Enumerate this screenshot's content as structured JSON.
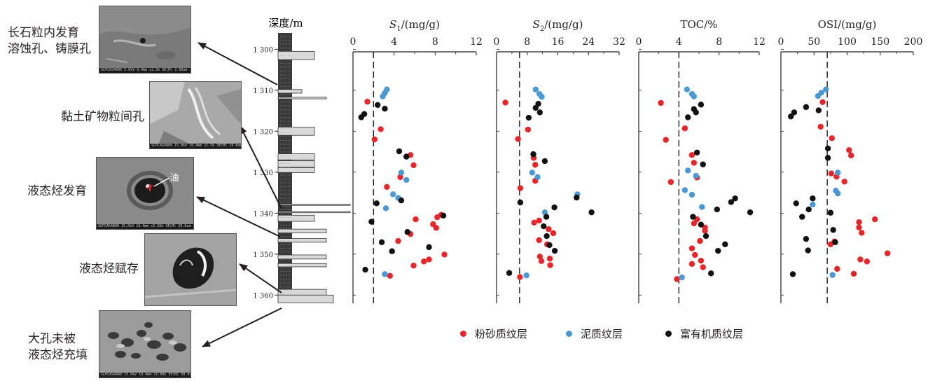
{
  "column": {
    "title": "深度/m",
    "tick_labels": [
      "1 300",
      "1 310",
      "1 320",
      "1 330",
      "1 340",
      "1 350",
      "1 360"
    ]
  },
  "sem_labels": [
    {
      "line1": "长石粒内发育",
      "line2": "溶蚀孔、铸膜孔"
    },
    {
      "line1": "黏土矿物粒间孔",
      "line2": ""
    },
    {
      "line1": "液态烃发育",
      "line2": ""
    },
    {
      "line1": "液态烃赋存",
      "line2": ""
    },
    {
      "line1": "大孔未被",
      "line2": "液态烃充填"
    }
  ],
  "sem_inset": {
    "oil_label": "油"
  },
  "sem_captions": [
    "SCPCAS4800 5.0kV 9.4mm x2.5k SE(M)  2.00um",
    "SCPCAS4800 15.0kV 10.4mm x1.5k SE(M)  10.0um",
    "SCPCAS4800 15.0kV 10.4mm x2.50k SE(M)  20.0um",
    "",
    "SCPCAS4800 15.0kV 10.4mm x1.00k SE(M)  50.0um"
  ],
  "legend": [
    {
      "label": "粉砂质纹层",
      "color": "#e8262a"
    },
    {
      "label": "泥质纹层",
      "color": "#4a98d4"
    },
    {
      "label": "富有机质纹层",
      "color": "#111111"
    }
  ],
  "chart_data": [
    {
      "type": "scatter",
      "title_main": "S",
      "title_sub": "1",
      "title_unit": "/(mg/g)",
      "xlim": [
        0,
        12
      ],
      "xticks": [
        "0",
        "4",
        "8",
        "12"
      ],
      "threshold": 2,
      "ylim": [
        1296,
        1362
      ],
      "y_axis_label": "深度/m",
      "series": [
        {
          "name": "粉砂质纹层",
          "points": [
            [
              1.4,
              1312.8
            ],
            [
              2.7,
              1319.5
            ],
            [
              2.1,
              1322
            ],
            [
              5.6,
              1325.8
            ],
            [
              5.9,
              1328.3
            ],
            [
              4.6,
              1331.2
            ],
            [
              3.3,
              1333.6
            ],
            [
              6.1,
              1341.5
            ],
            [
              8.2,
              1341
            ],
            [
              8.6,
              1340.4
            ],
            [
              7.8,
              1342.7
            ],
            [
              8.1,
              1343.6
            ],
            [
              4.4,
              1346.8
            ],
            [
              5.6,
              1345.1
            ],
            [
              8.9,
              1350.1
            ],
            [
              7.4,
              1351.3
            ],
            [
              6.9,
              1351.8
            ],
            [
              5.9,
              1352.8
            ],
            [
              3.6,
              1355.3
            ]
          ]
        },
        {
          "name": "泥质纹层",
          "points": [
            [
              3.3,
              1309.8
            ],
            [
              3.1,
              1310.7
            ],
            [
              2.9,
              1311.5
            ],
            [
              4.7,
              1330.1
            ],
            [
              5.2,
              1331.9
            ],
            [
              3.9,
              1335.4
            ],
            [
              4.4,
              1336.3
            ],
            [
              3.2,
              1338.8
            ],
            [
              3.1,
              1354.9
            ]
          ]
        },
        {
          "name": "富有机质纹层",
          "points": [
            [
              2.4,
              1313.6
            ],
            [
              3.1,
              1314.5
            ],
            [
              1.1,
              1315.8
            ],
            [
              0.8,
              1316.6
            ],
            [
              4.5,
              1324.9
            ],
            [
              5.2,
              1326.2
            ],
            [
              4.7,
              1336.9
            ],
            [
              2.3,
              1337.6
            ],
            [
              8.8,
              1340.6
            ],
            [
              1.8,
              1342.1
            ],
            [
              5.3,
              1344.6
            ],
            [
              2.8,
              1347.1
            ],
            [
              7.4,
              1348.3
            ],
            [
              3.8,
              1349.3
            ],
            [
              1.2,
              1353.8
            ]
          ]
        }
      ]
    },
    {
      "type": "scatter",
      "title_main": "S",
      "title_sub": "2",
      "title_unit": "/(mg/g)",
      "xlim": [
        0,
        32
      ],
      "xticks": [
        "0",
        "8",
        "16",
        "24",
        "32"
      ],
      "threshold": 6,
      "ylim": [
        1296,
        1362
      ],
      "series": [
        {
          "name": "粉砂质纹层",
          "points": [
            [
              2.3,
              1313
            ],
            [
              8.2,
              1319.6
            ],
            [
              5.6,
              1321.9
            ],
            [
              9.7,
              1326.5
            ],
            [
              10.1,
              1328.2
            ],
            [
              10.1,
              1332.1
            ],
            [
              6.2,
              1333.9
            ],
            [
              9.8,
              1342.3
            ],
            [
              11.1,
              1341.8
            ],
            [
              13.6,
              1343.9
            ],
            [
              14.8,
              1344.9
            ],
            [
              11.1,
              1346.6
            ],
            [
              13.2,
              1347.6
            ],
            [
              11.3,
              1350.6
            ],
            [
              13.9,
              1351.1
            ],
            [
              11.7,
              1351.7
            ],
            [
              14.0,
              1352.7
            ],
            [
              6.1,
              1355.6
            ]
          ]
        },
        {
          "name": "泥质纹层",
          "points": [
            [
              10.2,
              1309.8
            ],
            [
              11.2,
              1310.9
            ],
            [
              11.8,
              1311.6
            ],
            [
              9.3,
              1330.1
            ],
            [
              10.7,
              1331.2
            ],
            [
              21.1,
              1335.4
            ],
            [
              12.6,
              1339.8
            ],
            [
              7.8,
              1355.2
            ]
          ]
        },
        {
          "name": "富有机质纹层",
          "points": [
            [
              10.9,
              1313.3
            ],
            [
              10.2,
              1314.3
            ],
            [
              11.3,
              1315.4
            ],
            [
              8.4,
              1316.7
            ],
            [
              9.6,
              1325.6
            ],
            [
              12.6,
              1327.3
            ],
            [
              20.9,
              1336.2
            ],
            [
              6.2,
              1337.4
            ],
            [
              15.1,
              1338.6
            ],
            [
              24.8,
              1339.8
            ],
            [
              13.0,
              1340.9
            ],
            [
              12.3,
              1343.2
            ],
            [
              13.1,
              1345.6
            ],
            [
              13.8,
              1347.8
            ],
            [
              15.2,
              1349.2
            ],
            [
              3.3,
              1354.6
            ]
          ]
        }
      ]
    },
    {
      "type": "scatter",
      "title_main": "TOC/%",
      "title_sub": "",
      "title_unit": "",
      "xlim": [
        0,
        12
      ],
      "xticks": [
        "0",
        "4",
        "8",
        "12"
      ],
      "threshold": 4,
      "ylim": [
        1296,
        1362
      ],
      "series": [
        {
          "name": "粉砂质纹层",
          "points": [
            [
              2.2,
              1313.1
            ],
            [
              4.6,
              1319.3
            ],
            [
              2.7,
              1322.1
            ],
            [
              5.3,
              1325.8
            ],
            [
              5.5,
              1327.7
            ],
            [
              5.8,
              1331.3
            ],
            [
              3.2,
              1332.4
            ],
            [
              5.8,
              1341.5
            ],
            [
              5.5,
              1342.5
            ],
            [
              6.6,
              1343.5
            ],
            [
              6.6,
              1344.3
            ],
            [
              6.1,
              1346.8
            ],
            [
              5.3,
              1348.6
            ],
            [
              5.6,
              1350.2
            ],
            [
              6.2,
              1351.6
            ],
            [
              5.3,
              1352.4
            ],
            [
              6.4,
              1353.2
            ],
            [
              3.8,
              1356.1
            ]
          ]
        },
        {
          "name": "泥质纹层",
          "points": [
            [
              4.8,
              1309.8
            ],
            [
              5.3,
              1310.9
            ],
            [
              5.5,
              1311.5
            ],
            [
              4.9,
              1329.6
            ],
            [
              5.7,
              1330.9
            ],
            [
              4.6,
              1334.4
            ],
            [
              5.3,
              1335.5
            ],
            [
              6.3,
              1338.5
            ],
            [
              4.3,
              1355.7
            ]
          ]
        },
        {
          "name": "富有机质纹层",
          "points": [
            [
              6.2,
              1313.5
            ],
            [
              5.5,
              1314.6
            ],
            [
              5.7,
              1315.4
            ],
            [
              4.9,
              1316.6
            ],
            [
              5.8,
              1325.2
            ],
            [
              6.4,
              1328.1
            ],
            [
              9.6,
              1336.4
            ],
            [
              9.2,
              1337.3
            ],
            [
              7.8,
              1339.1
            ],
            [
              11.1,
              1339.8
            ],
            [
              5.4,
              1340.9
            ],
            [
              6.2,
              1342.8
            ],
            [
              6.7,
              1345.6
            ],
            [
              8.6,
              1347.6
            ],
            [
              7.9,
              1349.2
            ],
            [
              7.2,
              1354.7
            ]
          ]
        }
      ]
    },
    {
      "type": "scatter",
      "title_main": "OSI/(mg/g)",
      "title_sub": "",
      "title_unit": "",
      "xlim": [
        0,
        200
      ],
      "xticks": [
        "0",
        "50",
        "100",
        "150",
        "200"
      ],
      "threshold": 70,
      "ylim": [
        1296,
        1362
      ],
      "series": [
        {
          "name": "粉砂质纹层",
          "points": [
            [
              63,
              1312.9
            ],
            [
              60,
              1318.9
            ],
            [
              77,
              1321.7
            ],
            [
              103,
              1324.6
            ],
            [
              106,
              1325.9
            ],
            [
              84,
              1331.1
            ],
            [
              96,
              1332.3
            ],
            [
              76,
              1330.3
            ],
            [
              142,
              1341.5
            ],
            [
              118,
              1342.2
            ],
            [
              118,
              1343.5
            ],
            [
              122,
              1344.8
            ],
            [
              81,
              1346.9
            ],
            [
              75,
              1347.6
            ],
            [
              161,
              1349.8
            ],
            [
              120,
              1351.3
            ],
            [
              130,
              1351.8
            ],
            [
              85,
              1353.6
            ],
            [
              110,
              1354.8
            ]
          ]
        },
        {
          "name": "泥质纹层",
          "points": [
            [
              68,
              1309.8
            ],
            [
              61,
              1310.6
            ],
            [
              56,
              1311.4
            ],
            [
              86,
              1330.1
            ],
            [
              83,
              1334.5
            ],
            [
              86,
              1335.2
            ],
            [
              48,
              1337.9
            ],
            [
              78,
              1355.1
            ]
          ]
        },
        {
          "name": "富有机质纹层",
          "points": [
            [
              38,
              1314.1
            ],
            [
              20,
              1315.4
            ],
            [
              15,
              1316.4
            ],
            [
              57,
              1314.9
            ],
            [
              71,
              1324.2
            ],
            [
              71,
              1326.5
            ],
            [
              48,
              1336.4
            ],
            [
              23,
              1337.6
            ],
            [
              42,
              1339.1
            ],
            [
              75,
              1339.9
            ],
            [
              32,
              1340.9
            ],
            [
              79,
              1344.1
            ],
            [
              38,
              1346.3
            ],
            [
              82,
              1347.1
            ],
            [
              41,
              1349.1
            ],
            [
              18,
              1354.9
            ]
          ]
        }
      ]
    }
  ]
}
